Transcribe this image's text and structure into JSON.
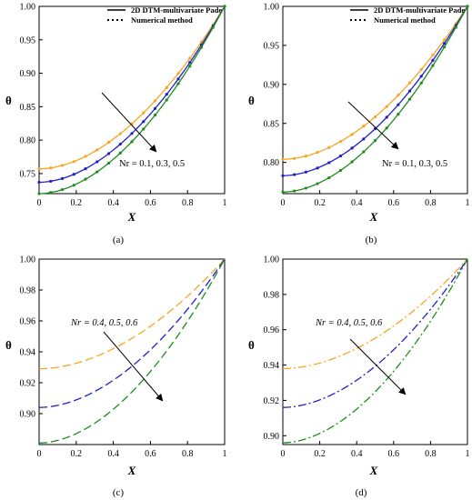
{
  "colors": {
    "orange": "#f5a623",
    "blue": "#1f1fcc",
    "green": "#1e8c1e",
    "axis": "#000000"
  },
  "chart_data": [
    {
      "type": "line",
      "panel_label": "(a)",
      "xlabel": "X",
      "ylabel": "θ",
      "xlim": [
        0,
        1
      ],
      "ylim": [
        0.72,
        1.0
      ],
      "x_ticks": [
        0,
        0.2,
        0.4,
        0.6,
        0.8,
        1
      ],
      "x_tick_labels": [
        "0",
        "0.2",
        "0.4",
        "0.6",
        "0.8",
        "1"
      ],
      "y_ticks": [
        0.75,
        0.8,
        0.85,
        0.9,
        0.95,
        1.0
      ],
      "y_tick_labels": [
        "0.75",
        "0.80",
        "0.85",
        "0.90",
        "0.95",
        "1.00"
      ],
      "legend": [
        {
          "label": "2D DTM-multivariate Pade",
          "style": "solid"
        },
        {
          "label": "Numerical method",
          "style": "dotted"
        }
      ],
      "annotation": "Nr = 0.1, 0.3, 0.5",
      "annotation_italic": false,
      "line_style": "solid",
      "markers": true,
      "series": [
        {
          "color": "orange",
          "theta0": 0.757
        },
        {
          "color": "blue",
          "theta0": 0.737
        },
        {
          "color": "green",
          "theta0": 0.72
        }
      ]
    },
    {
      "type": "line",
      "panel_label": "(b)",
      "xlabel": "X",
      "ylabel": "θ",
      "xlim": [
        0,
        1
      ],
      "ylim": [
        0.76,
        1.0
      ],
      "x_ticks": [
        0,
        0.2,
        0.4,
        0.6,
        0.8,
        1
      ],
      "x_tick_labels": [
        "0",
        "0.2",
        "0.4",
        "0.6",
        "0.8",
        "1"
      ],
      "y_ticks": [
        0.8,
        0.85,
        0.9,
        0.95,
        1.0
      ],
      "y_tick_labels": [
        "0.80",
        "0.85",
        "0.90",
        "0.95",
        "1.00"
      ],
      "legend": [
        {
          "label": "2D DTM-multivariate Pade",
          "style": "solid"
        },
        {
          "label": "Numerical method",
          "style": "dotted"
        }
      ],
      "annotation": "Nr = 0.1, 0.3, 0.5",
      "annotation_italic": false,
      "line_style": "solid",
      "markers": true,
      "series": [
        {
          "color": "orange",
          "theta0": 0.804
        },
        {
          "color": "blue",
          "theta0": 0.783
        },
        {
          "color": "green",
          "theta0": 0.762
        }
      ]
    },
    {
      "type": "line",
      "panel_label": "(c)",
      "xlabel": "X",
      "ylabel": "θ",
      "xlim": [
        0,
        1
      ],
      "ylim": [
        0.88,
        1.0
      ],
      "x_ticks": [
        0,
        0.2,
        0.4,
        0.6,
        0.8,
        1
      ],
      "x_tick_labels": [
        "0",
        "0.2",
        "0.4",
        "0.6",
        "0.8",
        "1"
      ],
      "y_ticks": [
        0.9,
        0.92,
        0.94,
        0.96,
        0.98,
        1.0
      ],
      "y_tick_labels": [
        "0.90",
        "0.92",
        "0.94",
        "0.96",
        "0.98",
        "1.00"
      ],
      "legend": [],
      "annotation": "Nr = 0.4, 0.5, 0.6",
      "annotation_italic": true,
      "line_style": "dashed",
      "markers": false,
      "series": [
        {
          "color": "orange",
          "theta0": 0.929
        },
        {
          "color": "blue",
          "theta0": 0.904
        },
        {
          "color": "green",
          "theta0": 0.881
        }
      ]
    },
    {
      "type": "line",
      "panel_label": "(d)",
      "xlabel": "X",
      "ylabel": "θ",
      "xlim": [
        0,
        1
      ],
      "ylim": [
        0.895,
        1.0
      ],
      "x_ticks": [
        0,
        0.2,
        0.4,
        0.6,
        0.8,
        1
      ],
      "x_tick_labels": [
        "0",
        "0.2",
        "0.4",
        "0.6",
        "0.8",
        "1"
      ],
      "y_ticks": [
        0.9,
        0.92,
        0.94,
        0.96,
        0.98,
        1.0
      ],
      "y_tick_labels": [
        "0.90",
        "0.92",
        "0.94",
        "0.96",
        "0.98",
        "1.00"
      ],
      "legend": [],
      "annotation": "Nr = 0.4, 0.5, 0.6",
      "annotation_italic": true,
      "line_style": "dashdot",
      "markers": false,
      "series": [
        {
          "color": "orange",
          "theta0": 0.938
        },
        {
          "color": "blue",
          "theta0": 0.916
        },
        {
          "color": "green",
          "theta0": 0.896
        }
      ]
    }
  ]
}
